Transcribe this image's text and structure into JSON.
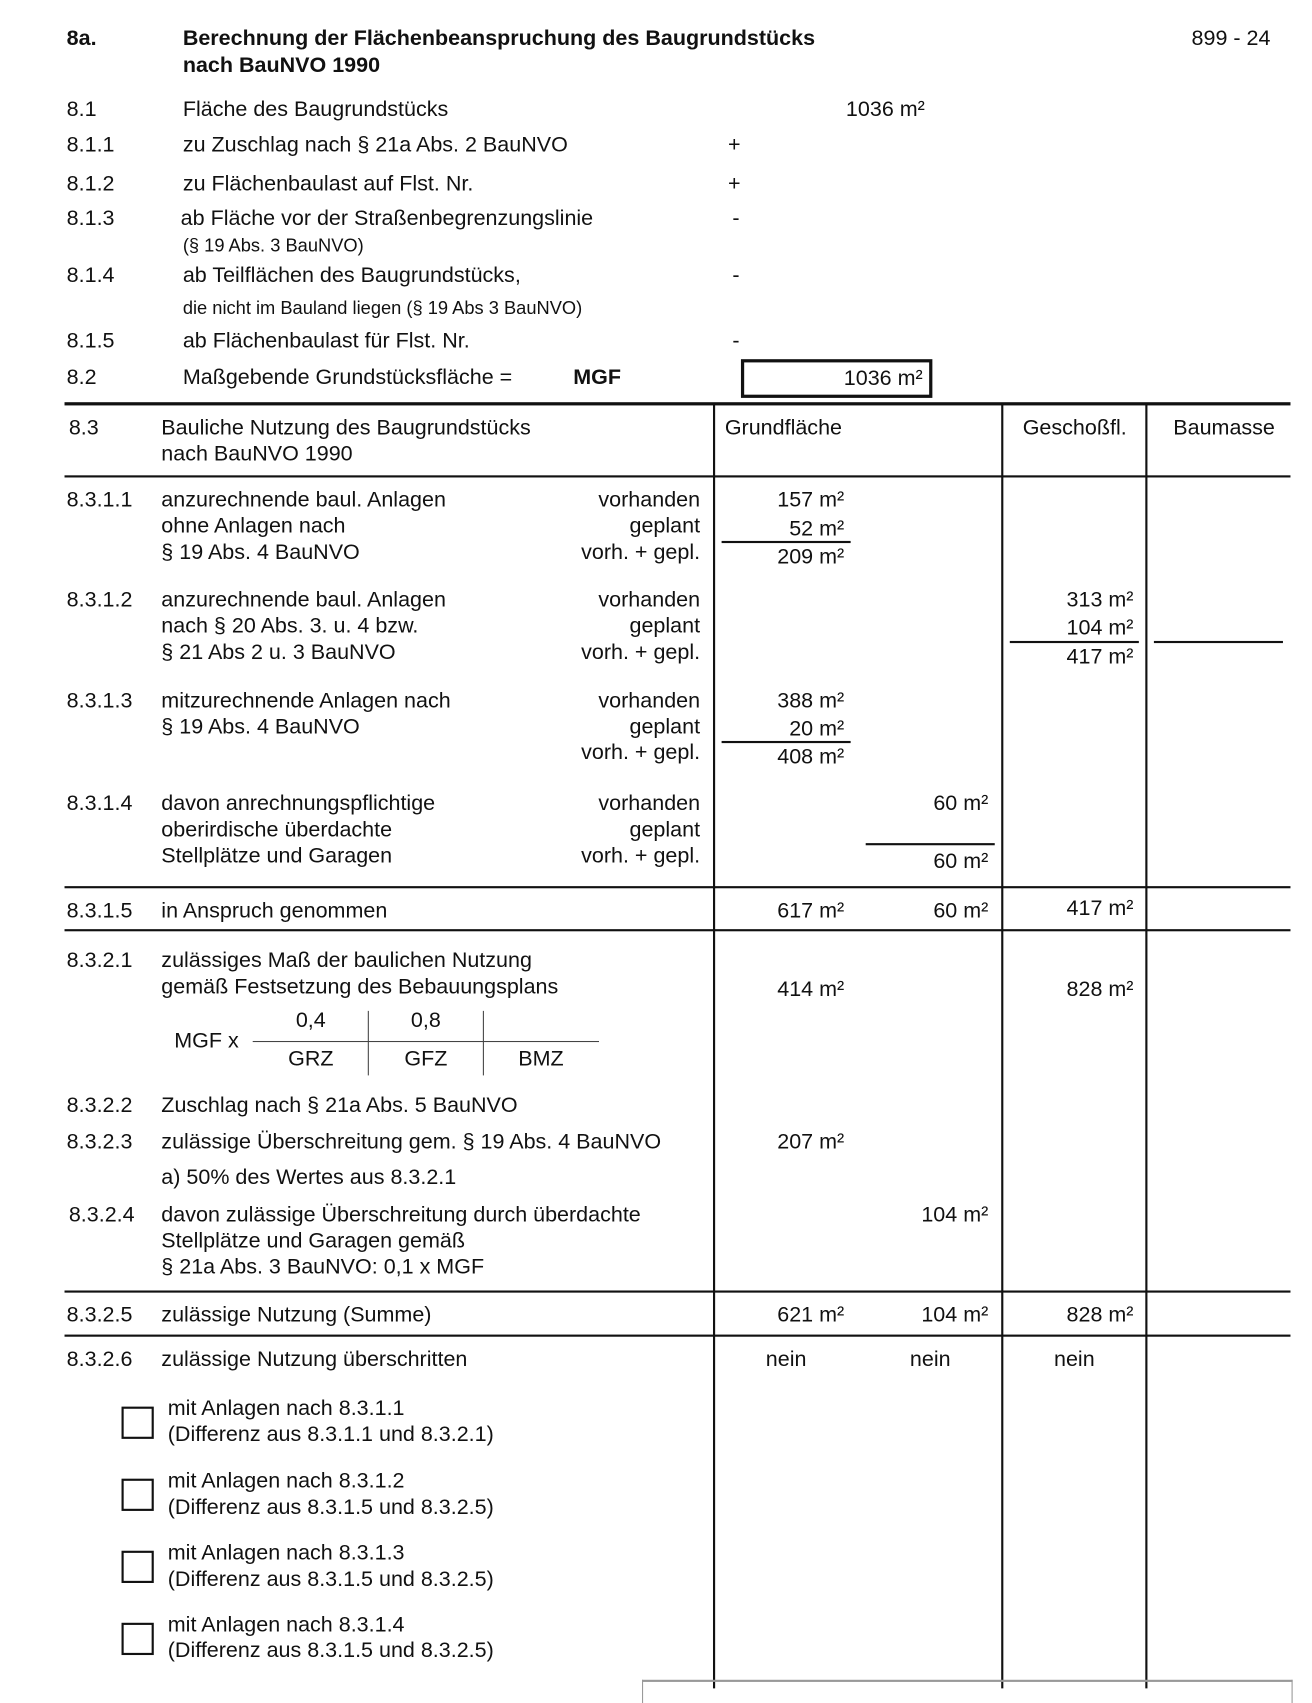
{
  "header": {
    "number": "8a.",
    "title_line1": "Berechnung der Flächenbeanspruchung des Baugrundstücks",
    "title_line2": "nach BauNVO 1990",
    "page_ref": "899 - 24"
  },
  "section_8_1": {
    "rows": [
      {
        "num": "8.1",
        "label": "Fläche des Baugrundstücks",
        "value": "1036 m²"
      },
      {
        "num": "8.1.1",
        "label": "zu Zuschlag nach § 21a Abs. 2 BauNVO",
        "sign": "+"
      },
      {
        "num": "8.1.2",
        "label": "zu Flächenbaulast auf Flst. Nr.",
        "sign": "+"
      },
      {
        "num": "8.1.3",
        "label": "ab Fläche vor der Straßenbegrenzungslinie",
        "sub": "(§ 19 Abs. 3 BauNVO)",
        "sign": "-"
      },
      {
        "num": "8.1.4",
        "label": "ab Teilflächen des Baugrundstücks,",
        "sub": "die nicht im Bauland liegen (§ 19 Abs 3 BauNVO)",
        "sign": "-"
      },
      {
        "num": "8.1.5",
        "label": "ab Flächenbaulast für Flst. Nr.",
        "sign": "-"
      }
    ],
    "mgf": {
      "num": "8.2",
      "label": "Maßgebende Grundstücksfläche =",
      "abbr": "MGF",
      "value": "1036 m²"
    }
  },
  "table": {
    "header": {
      "num": "8.3",
      "label1": "Bauliche Nutzung des Baugrundstücks",
      "label2": "nach BauNVO 1990",
      "col_grundflaeche": "Grundfläche",
      "col_geschossfl": "Geschoßfl.",
      "col_baumasse": "Baumasse"
    },
    "states": {
      "vorhanden": "vorhanden",
      "geplant": "geplant",
      "sum": "vorh. + gepl."
    },
    "r8311": {
      "num": "8.3.1.1",
      "l1": "anzurechnende baul. Anlagen",
      "l2": "ohne Anlagen nach",
      "l3": "§ 19 Abs. 4 BauNVO",
      "v1": "157 m²",
      "v2": "52 m²",
      "sum": "209 m²"
    },
    "r8312": {
      "num": "8.3.1.2",
      "l1": "anzurechnende baul. Anlagen",
      "l2": "nach § 20 Abs. 3. u. 4 bzw.",
      "l3": "§ 21 Abs 2 u. 3 BauNVO",
      "v1": "313 m²",
      "v2": "104 m²",
      "sum": "417 m²"
    },
    "r8313": {
      "num": "8.3.1.3",
      "l1": "mitzurechnende Anlagen nach",
      "l2": "§ 19 Abs. 4 BauNVO",
      "v1": "388 m²",
      "v2": "20 m²",
      "sum": "408 m²"
    },
    "r8314": {
      "num": "8.3.1.4",
      "l1": "davon anrechnungspflichtige",
      "l2": "oberirdische überdachte",
      "l3": "Stellplätze und Garagen",
      "v1": "60 m²",
      "sum": "60 m²"
    },
    "r8315": {
      "num": "8.3.1.5",
      "label": "in Anspruch genommen",
      "grund": "617 m²",
      "stell": "60 m²",
      "geschoss": "417 m²"
    },
    "r8321": {
      "num": "8.3.2.1",
      "l1": "zulässiges Maß der baulichen Nutzung",
      "l2": "gemäß Festsetzung des Bebauungsplans",
      "grund": "414 m²",
      "geschoss": "828 m²",
      "formula": {
        "prefix": "MGF x",
        "grz_value": "0,4",
        "gfz_value": "0,8",
        "grz": "GRZ",
        "gfz": "GFZ",
        "bmz": "BMZ"
      }
    },
    "r8322": {
      "num": "8.3.2.2",
      "label": "Zuschlag nach § 21a Abs. 5 BauNVO"
    },
    "r8323": {
      "num": "8.3.2.3",
      "label": "zulässige Überschreitung gem. § 19 Abs. 4 BauNVO",
      "sub": "a) 50% des Wertes aus 8.3.2.1",
      "grund": "207 m²"
    },
    "r8324": {
      "num": "8.3.2.4",
      "l1": "davon zulässige Überschreitung durch überdachte",
      "l2": "Stellplätze und Garagen gemäß",
      "l3": "§ 21a Abs. 3 BauNVO: 0,1 x MGF",
      "stell": "104 m²"
    },
    "r8325": {
      "num": "8.3.2.5",
      "label": "zulässige Nutzung (Summe)",
      "grund": "621 m²",
      "stell": "104 m²",
      "geschoss": "828 m²"
    },
    "r8326": {
      "num": "8.3.2.6",
      "label": "zulässige Nutzung überschritten",
      "grund": "nein",
      "stell": "nein",
      "geschoss": "nein"
    },
    "checks": [
      {
        "l1": "mit Anlagen nach 8.3.1.1",
        "l2": "(Differenz aus 8.3.1.1 und 8.3.2.1)",
        "checked": false
      },
      {
        "l1": "mit Anlagen nach 8.3.1.2",
        "l2": "(Differenz aus 8.3.1.5 und 8.3.2.5)",
        "checked": false
      },
      {
        "l1": "mit Anlagen nach 8.3.1.3",
        "l2": "(Differenz aus 8.3.1.5 und 8.3.2.5)",
        "checked": false
      },
      {
        "l1": "mit Anlagen nach 8.3.1.4",
        "l2": "(Differenz aus 8.3.1.5 und 8.3.2.5)",
        "checked": false
      }
    ]
  }
}
